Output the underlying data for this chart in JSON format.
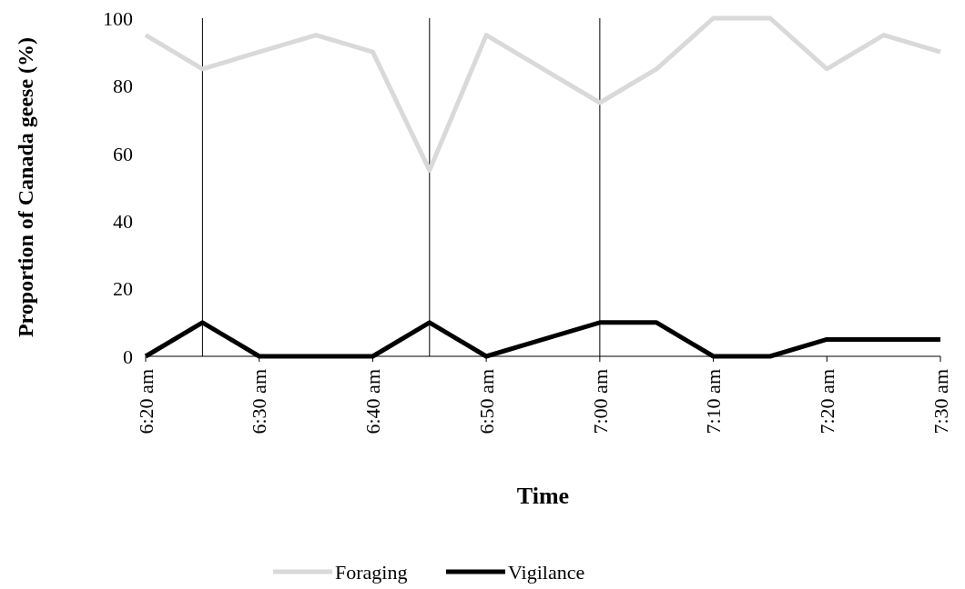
{
  "chart_data": {
    "type": "line",
    "ylabel": "Proportion of Canada geese (%)",
    "xlabel": "Time",
    "x": [
      6.3333,
      6.4167,
      6.5,
      6.5833,
      6.6667,
      6.75,
      6.8333,
      6.9167,
      7,
      7.0833,
      7.1667,
      7.25,
      7.3333,
      7.4167,
      7.5
    ],
    "xlim": [
      6.3333,
      7.5
    ],
    "xticks": [
      {
        "value": 6.3333,
        "label": "6:20 am"
      },
      {
        "value": 6.5,
        "label": "6:30 am"
      },
      {
        "value": 6.6667,
        "label": "6:40 am"
      },
      {
        "value": 6.8333,
        "label": "6:50 am"
      },
      {
        "value": 7,
        "label": "7:00 am"
      },
      {
        "value": 7.1667,
        "label": "7:10 am"
      },
      {
        "value": 7.3333,
        "label": "7:20 am"
      },
      {
        "value": 7.5,
        "label": "7:30 am"
      }
    ],
    "ylim": [
      0,
      100
    ],
    "yticks": [
      0,
      20,
      40,
      60,
      80,
      100
    ],
    "series": [
      {
        "name": "Foraging",
        "color": "#d9d9d9",
        "values": [
          95,
          85,
          90,
          95,
          90,
          55,
          95,
          85,
          75,
          85,
          100,
          100,
          85,
          95,
          90
        ]
      },
      {
        "name": "Vigilance",
        "color": "#000000",
        "values": [
          0,
          10,
          0,
          0,
          0,
          10,
          0,
          5,
          10,
          10,
          0,
          0,
          5,
          5,
          5
        ]
      }
    ],
    "ref_lines": [
      {
        "axis": "x",
        "value": 6.4167,
        "color": "#000000"
      },
      {
        "axis": "x",
        "value": 6.75,
        "color": "#000000"
      },
      {
        "axis": "x",
        "value": 7,
        "color": "#000000"
      }
    ],
    "legend": "bottom",
    "grid": false,
    "line_style": "solid"
  }
}
